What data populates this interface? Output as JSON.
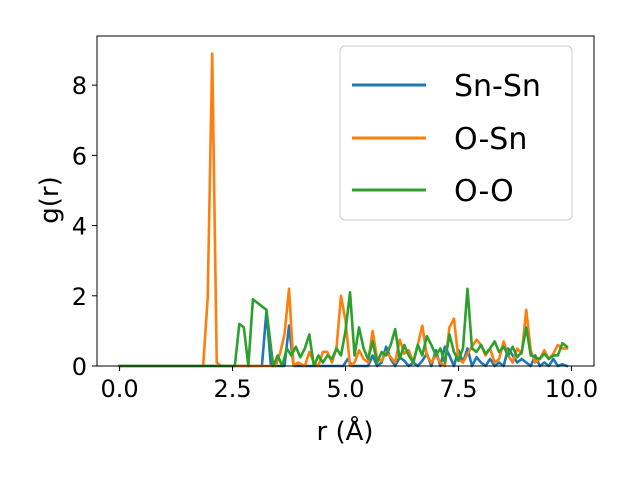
{
  "chart_data": {
    "type": "line",
    "title": "",
    "xlabel": "r (Å)",
    "ylabel": "g(r)",
    "xlim": [
      -0.5,
      10.5
    ],
    "ylim": [
      0,
      9.4
    ],
    "xticks": [
      0.0,
      2.5,
      5.0,
      7.5,
      10.0
    ],
    "xtick_labels": [
      "0.0",
      "2.5",
      "5.0",
      "7.5",
      "10.0"
    ],
    "yticks": [
      0,
      2,
      4,
      6,
      8
    ],
    "ytick_labels": [
      "0",
      "2",
      "4",
      "6",
      "8"
    ],
    "grid": false,
    "legend_position": "top-right",
    "series": [
      {
        "name": "Sn-Sn",
        "color": "#1f77b4",
        "x": [
          0,
          3.05,
          3.15,
          3.25,
          3.35,
          3.45,
          3.55,
          3.65,
          3.75,
          3.85,
          3.95,
          4.5,
          4.95,
          5.05,
          5.15,
          5.5,
          5.6,
          5.7,
          5.8,
          5.9,
          6.0,
          6.1,
          6.2,
          6.3,
          6.4,
          6.5,
          6.6,
          6.7,
          6.8,
          6.9,
          7.0,
          7.1,
          7.2,
          7.3,
          7.4,
          7.5,
          7.6,
          7.7,
          7.8,
          7.9,
          8.0,
          8.1,
          8.2,
          8.3,
          8.4,
          8.5,
          8.6,
          8.7,
          8.8,
          8.9,
          9.0,
          9.1,
          9.2,
          9.3,
          9.4,
          9.5,
          9.6,
          9.7,
          9.8,
          9.9
        ],
        "y": [
          0,
          0,
          0,
          1.55,
          0,
          0,
          0,
          0,
          1.15,
          0,
          0,
          0,
          0,
          0.2,
          0,
          0,
          0.3,
          0,
          0.1,
          0.55,
          0.2,
          0,
          0.25,
          0.15,
          0,
          0.1,
          0,
          0.15,
          0.35,
          0,
          0.45,
          0,
          0.55,
          0.3,
          0,
          0.45,
          0.1,
          0.5,
          0,
          0.25,
          0.1,
          0,
          0.2,
          0,
          0.1,
          0,
          0.5,
          0.3,
          0.1,
          0.2,
          0.1,
          0,
          0.3,
          0,
          0.1,
          0,
          0.2,
          0,
          0.05,
          0
        ]
      },
      {
        "name": "O-Sn",
        "color": "#ff7f0e",
        "x": [
          0,
          1.85,
          1.95,
          2.05,
          2.15,
          2.25,
          3.3,
          3.45,
          3.55,
          3.65,
          3.75,
          3.85,
          3.95,
          4.1,
          4.2,
          4.3,
          4.4,
          4.5,
          4.6,
          4.7,
          4.8,
          4.9,
          5.0,
          5.1,
          5.2,
          5.3,
          5.4,
          5.5,
          5.6,
          5.7,
          5.8,
          5.9,
          6.0,
          6.1,
          6.2,
          6.3,
          6.4,
          6.5,
          6.6,
          6.7,
          6.8,
          6.9,
          7.0,
          7.1,
          7.2,
          7.3,
          7.4,
          7.5,
          7.6,
          7.7,
          7.8,
          7.9,
          8.0,
          8.1,
          8.2,
          8.3,
          8.4,
          8.5,
          8.6,
          8.7,
          8.8,
          8.9,
          9.0,
          9.1,
          9.2,
          9.3,
          9.4,
          9.5,
          9.6,
          9.7,
          9.8,
          9.9
        ],
        "y": [
          0,
          0,
          1.95,
          8.9,
          0.1,
          0,
          0,
          0,
          0.35,
          0.9,
          2.2,
          0,
          0.1,
          0,
          0.4,
          0.1,
          0,
          0.4,
          0.4,
          0.1,
          0.5,
          2.0,
          1.3,
          0,
          0.1,
          0.45,
          0.2,
          0.1,
          1.0,
          0.2,
          0.15,
          0.4,
          0.25,
          0.1,
          0.75,
          0.35,
          0.45,
          0.1,
          0.6,
          1.15,
          0.3,
          0.1,
          0.3,
          0.1,
          0,
          1.1,
          1.35,
          0.2,
          0.1,
          0.35,
          0.55,
          0.75,
          0.6,
          0.3,
          0.5,
          0.1,
          0.2,
          0.7,
          0.3,
          0.1,
          0.5,
          0.35,
          1.6,
          0.45,
          0.1,
          0.2,
          0.45,
          0.2,
          0.35,
          0.6,
          0.5,
          0.5
        ]
      },
      {
        "name": "O-O",
        "color": "#2ca02c",
        "x": [
          0,
          2.55,
          2.65,
          2.75,
          2.85,
          2.95,
          3.05,
          3.25,
          3.4,
          3.5,
          3.6,
          3.7,
          3.8,
          3.9,
          4.0,
          4.1,
          4.2,
          4.3,
          4.4,
          4.5,
          4.6,
          4.7,
          4.8,
          4.9,
          5.0,
          5.1,
          5.2,
          5.3,
          5.4,
          5.5,
          5.6,
          5.7,
          5.8,
          5.9,
          6.0,
          6.1,
          6.2,
          6.3,
          6.4,
          6.5,
          6.6,
          6.7,
          6.8,
          6.9,
          7.0,
          7.1,
          7.2,
          7.3,
          7.4,
          7.5,
          7.6,
          7.7,
          7.8,
          7.9,
          8.0,
          8.1,
          8.2,
          8.3,
          8.4,
          8.5,
          8.6,
          8.7,
          8.8,
          8.9,
          9.0,
          9.1,
          9.2,
          9.3,
          9.4,
          9.5,
          9.6,
          9.7,
          9.8,
          9.9
        ],
        "y": [
          0,
          0,
          1.2,
          1.1,
          0,
          1.9,
          1.8,
          1.6,
          0,
          0.3,
          0,
          0.5,
          0.3,
          0.55,
          0.25,
          0.5,
          0.9,
          0,
          0.3,
          0.1,
          0.3,
          0.2,
          0.5,
          0.3,
          1.0,
          2.1,
          0.3,
          1.1,
          0.5,
          0.2,
          0.7,
          0.1,
          0.4,
          0.3,
          0.6,
          1.05,
          0.2,
          0.6,
          0.3,
          0.1,
          0.6,
          0.3,
          0.85,
          0.6,
          0.3,
          0.5,
          0.1,
          0.9,
          0.4,
          0.15,
          0.5,
          2.2,
          0.5,
          0.4,
          0.6,
          0.35,
          0.5,
          0.7,
          0.4,
          0.55,
          0.3,
          0.55,
          0.25,
          0.4,
          1.1,
          0.3,
          0.25,
          0.2,
          0.35,
          0.2,
          0.3,
          0.3,
          0.65,
          0.55
        ]
      }
    ]
  }
}
